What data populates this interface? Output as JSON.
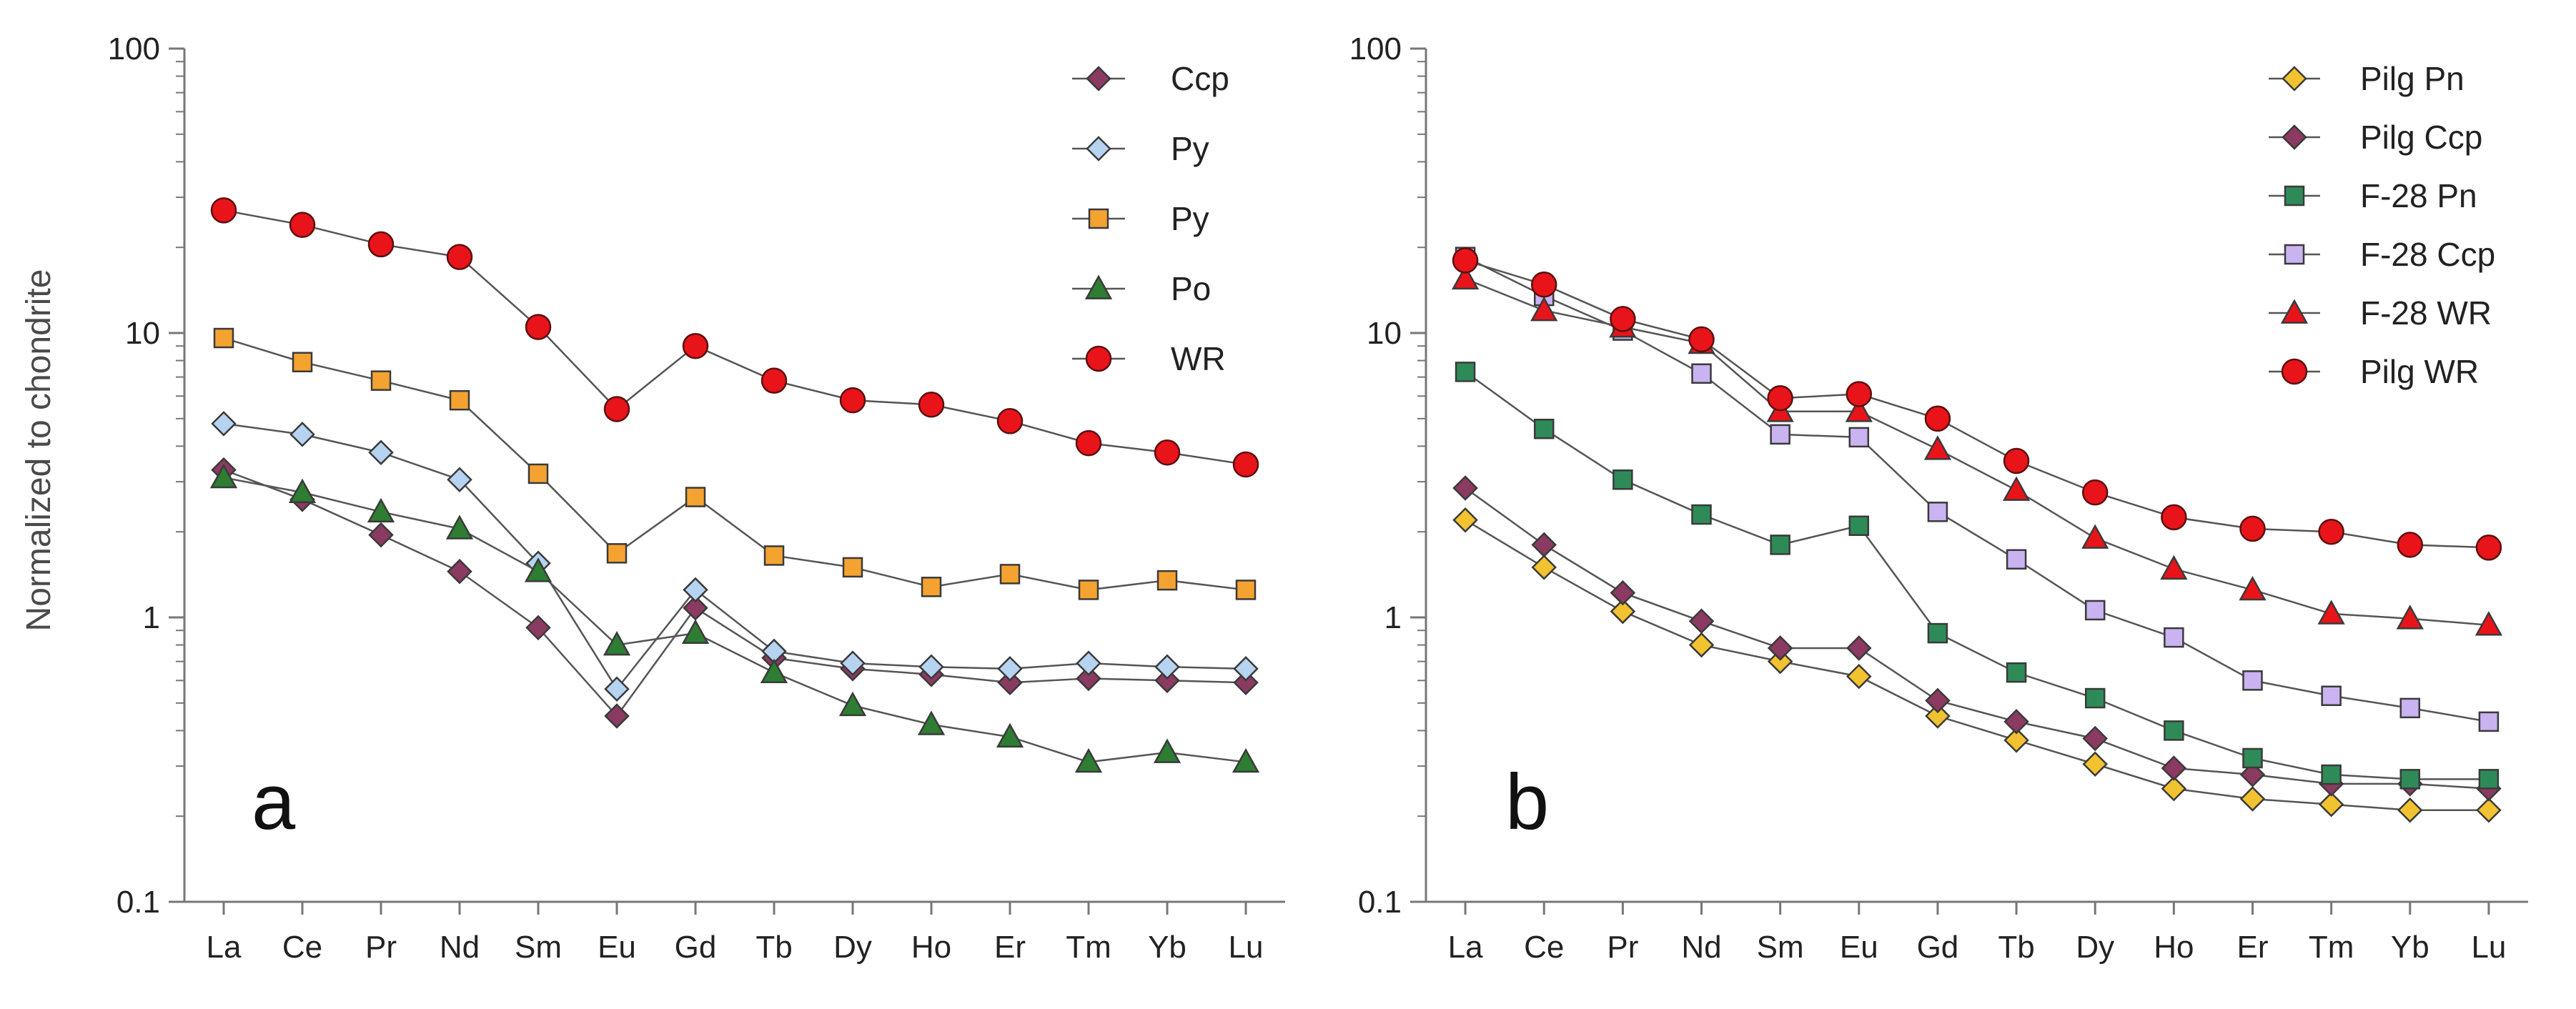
{
  "figure": {
    "ylabel": "Normalized to chondrite"
  },
  "chart_data": [
    {
      "type": "line",
      "panel_label": "a",
      "y_scale": "log",
      "ylim": [
        0.1,
        100
      ],
      "y_ticks": [
        "0.1",
        "1",
        "10",
        "100"
      ],
      "ylabel": "Normalized to chondrite",
      "xlabel": "",
      "grid": false,
      "legend_position": "top-right",
      "categories": [
        "La",
        "Ce",
        "Pr",
        "Nd",
        "Sm",
        "Eu",
        "Gd",
        "Tb",
        "Dy",
        "Ho",
        "Er",
        "Tm",
        "Yb",
        "Lu"
      ],
      "series": [
        {
          "name": "Ccp",
          "marker": "diamond",
          "color": "#8B3A62",
          "values": [
            3.3,
            2.6,
            1.95,
            1.45,
            0.92,
            0.45,
            1.08,
            0.72,
            0.66,
            0.63,
            0.59,
            0.61,
            0.6,
            0.59
          ]
        },
        {
          "name": "Py",
          "marker": "diamond",
          "color": "#B7D3F2",
          "values": [
            4.8,
            4.4,
            3.8,
            3.05,
            1.55,
            0.56,
            1.25,
            0.76,
            0.69,
            0.67,
            0.66,
            0.69,
            0.67,
            0.66
          ]
        },
        {
          "name": "Py",
          "marker": "square",
          "color": "#F4A331",
          "values": [
            9.6,
            7.9,
            6.8,
            5.8,
            3.2,
            1.68,
            2.65,
            1.65,
            1.5,
            1.28,
            1.42,
            1.25,
            1.35,
            1.25
          ]
        },
        {
          "name": "Po",
          "marker": "triangle",
          "color": "#2E7D32",
          "values": [
            3.1,
            2.75,
            2.35,
            2.05,
            1.45,
            0.8,
            0.88,
            0.64,
            0.49,
            0.42,
            0.38,
            0.31,
            0.335,
            0.31
          ]
        },
        {
          "name": "WR",
          "marker": "circle",
          "color": "#E8141A",
          "values": [
            27,
            24,
            20.5,
            18.5,
            10.5,
            5.4,
            9,
            6.8,
            5.8,
            5.6,
            4.9,
            4.1,
            3.8,
            3.45
          ]
        }
      ]
    },
    {
      "type": "line",
      "panel_label": "b",
      "y_scale": "log",
      "ylim": [
        0.1,
        100
      ],
      "y_ticks": [
        "0.1",
        "1",
        "10",
        "100"
      ],
      "ylabel": "",
      "xlabel": "",
      "grid": false,
      "legend_position": "top-right",
      "categories": [
        "La",
        "Ce",
        "Pr",
        "Nd",
        "Sm",
        "Eu",
        "Gd",
        "Tb",
        "Dy",
        "Ho",
        "Er",
        "Tm",
        "Yb",
        "Lu"
      ],
      "series": [
        {
          "name": "Pilg Pn",
          "marker": "diamond",
          "color": "#F2C230",
          "values": [
            2.2,
            1.5,
            1.05,
            0.8,
            0.7,
            0.62,
            0.45,
            0.37,
            0.305,
            0.25,
            0.23,
            0.22,
            0.21,
            0.21
          ]
        },
        {
          "name": "Pilg  Ccp",
          "marker": "diamond",
          "color": "#8B3A62",
          "values": [
            2.85,
            1.8,
            1.22,
            0.97,
            0.78,
            0.78,
            0.51,
            0.43,
            0.375,
            0.295,
            0.28,
            0.26,
            0.26,
            0.25
          ]
        },
        {
          "name": "F-28 Pn",
          "marker": "square",
          "color": "#2E8B57",
          "values": [
            7.3,
            4.6,
            3.05,
            2.3,
            1.8,
            2.1,
            0.88,
            0.64,
            0.52,
            0.4,
            0.32,
            0.28,
            0.27,
            0.27
          ]
        },
        {
          "name": "F-28 Ccp",
          "marker": "square",
          "color": "#C9B3F0",
          "values": [
            18.5,
            13.5,
            10.2,
            7.2,
            4.4,
            4.3,
            2.35,
            1.6,
            1.06,
            0.85,
            0.6,
            0.53,
            0.48,
            0.43
          ]
        },
        {
          "name": "F-28 WR",
          "marker": "triangle",
          "color": "#E8141A",
          "values": [
            15.5,
            12,
            10.5,
            9.2,
            5.3,
            5.3,
            3.9,
            2.8,
            1.9,
            1.48,
            1.25,
            1.03,
            0.99,
            0.94
          ]
        },
        {
          "name": "Pilg  WR",
          "marker": "circle",
          "color": "#E8141A",
          "values": [
            18,
            14.8,
            11.2,
            9.5,
            5.9,
            6.1,
            5.0,
            3.55,
            2.75,
            2.25,
            2.05,
            2.0,
            1.8,
            1.76
          ]
        }
      ]
    }
  ]
}
